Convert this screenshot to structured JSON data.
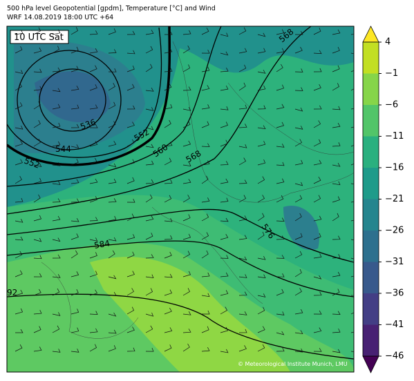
{
  "header": {
    "line1": "500 hPa level Geopotential [gpdm], Temperature [°C] and Wind",
    "line2": "WRF 14.08.2019 18:00 UTC +64"
  },
  "map": {
    "time_label": "10 UTC Sat",
    "contour_labels": [
      "568",
      "536",
      "544",
      "552",
      "552",
      "560",
      "568",
      "576",
      "584",
      "92"
    ],
    "copyright": "© Meteorological Institute Munich, LMU"
  },
  "colorbar": {
    "ticks": [
      "4",
      "−1",
      "−6",
      "−11",
      "−16",
      "−21",
      "−26",
      "−31",
      "−36",
      "−41",
      "−46"
    ]
  }
}
